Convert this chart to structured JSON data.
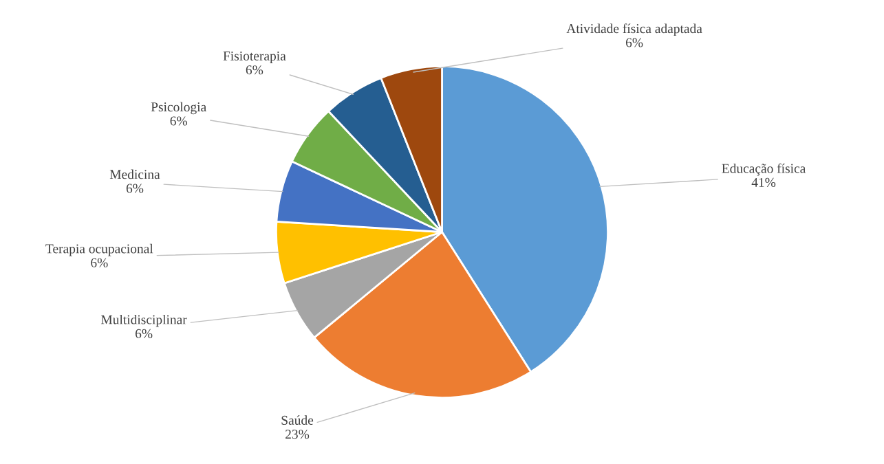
{
  "chart_data": {
    "type": "pie",
    "categories": [
      "Educação física",
      "Saúde",
      "Multidisciplinar",
      "Terapia ocupacional",
      "Medicina",
      "Psicologia",
      "Fisioterapia",
      "Atividade física adaptada"
    ],
    "values": [
      41,
      23,
      6,
      6,
      6,
      6,
      6,
      6
    ],
    "value_labels": [
      "41%",
      "23%",
      "6%",
      "6%",
      "6%",
      "6%",
      "6%",
      "6%"
    ],
    "colors": [
      "#5b9bd5",
      "#ed7d31",
      "#a5a5a5",
      "#ffc000",
      "#4472c4",
      "#70ad47",
      "#255e91",
      "#9e480e"
    ],
    "legend": false
  }
}
